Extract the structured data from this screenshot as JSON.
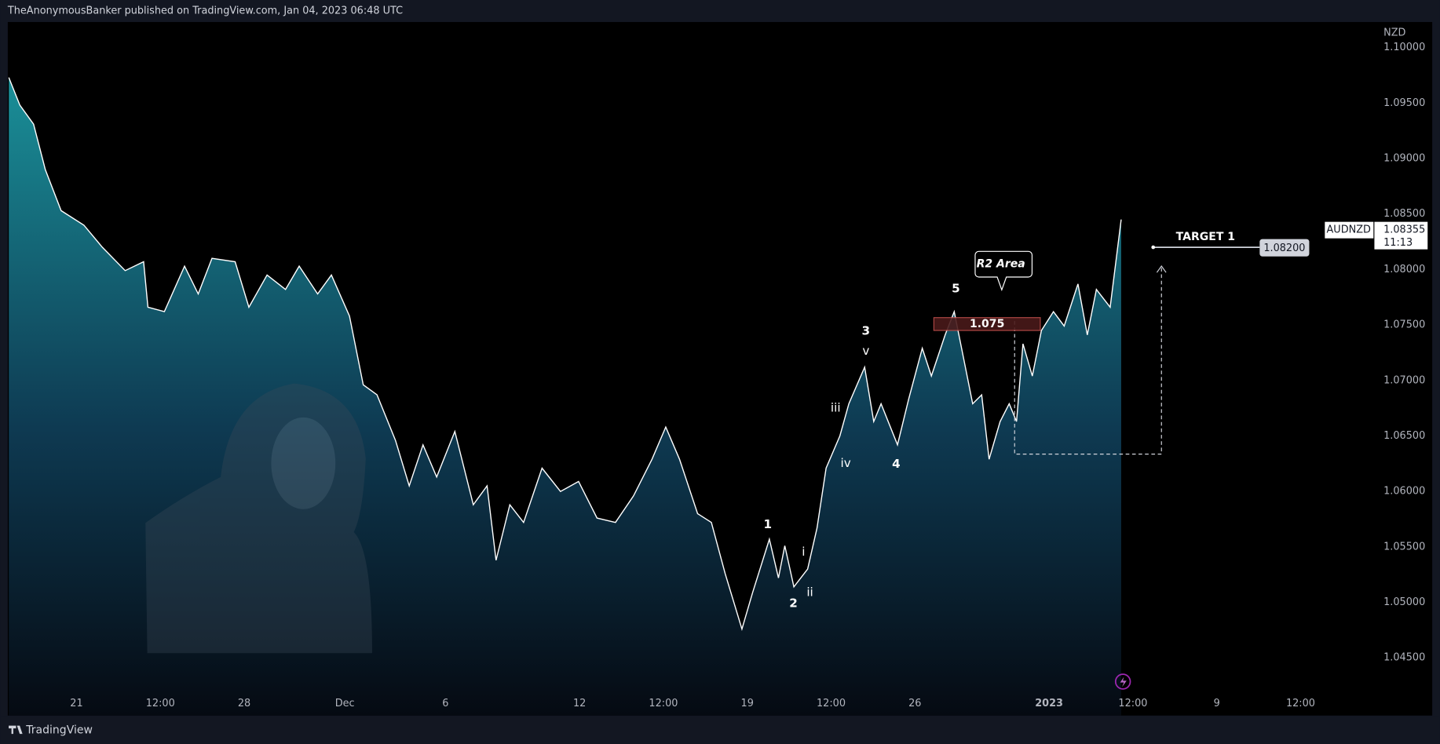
{
  "header": {
    "title": "TheAnonymousBanker published on TradingView.com, Jan 04, 2023 06:48 UTC"
  },
  "footer": {
    "brand": "TradingView"
  },
  "chart_data": {
    "type": "area",
    "symbol": "AUDNZD",
    "currency": "NZD",
    "x": [
      -2.02,
      -1.69,
      -1.28,
      -0.93,
      -0.46,
      0.22,
      0.77,
      1.45,
      2.0,
      2.13,
      2.62,
      3.22,
      3.63,
      4.04,
      4.73,
      5.14,
      5.68,
      6.23,
      6.64,
      7.19,
      7.6,
      8.14,
      8.55,
      8.96,
      9.51,
      9.92,
      10.33,
      10.74,
      11.28,
      11.83,
      12.24,
      12.51,
      12.92,
      13.33,
      13.88,
      14.43,
      14.97,
      15.52,
      16.07,
      16.61,
      17.16,
      17.57,
      17.98,
      18.52,
      18.93,
      19.34,
      19.84,
      20.16,
      20.66,
      20.93,
      21.12,
      21.39,
      21.8,
      22.08,
      22.35,
      22.76,
      23.03,
      23.5,
      23.77,
      23.99,
      24.48,
      24.81,
      25.22,
      25.49,
      25.9,
      26.17,
      26.45,
      26.72,
      26.99,
      27.21,
      27.54,
      27.81,
      28.03,
      28.22,
      28.5,
      28.77,
      29.13,
      29.45,
      29.86,
      30.14,
      30.41,
      30.82,
      31.15
    ],
    "series": [
      {
        "name": "AUDNZD",
        "color": "#ffffff",
        "values": [
          1.0973,
          1.0948,
          1.0931,
          1.089,
          1.0853,
          1.084,
          1.082,
          1.0799,
          1.0807,
          1.0766,
          1.0762,
          1.0803,
          1.0778,
          1.081,
          1.0807,
          1.0766,
          1.0795,
          1.0782,
          1.0803,
          1.0778,
          1.0795,
          1.0758,
          1.0696,
          1.0687,
          1.0646,
          1.0605,
          1.0642,
          1.0613,
          1.0654,
          1.0588,
          1.0605,
          1.0538,
          1.0588,
          1.0572,
          1.0621,
          1.06,
          1.0609,
          1.0576,
          1.0572,
          1.0596,
          1.0629,
          1.0658,
          1.0629,
          1.058,
          1.0572,
          1.0526,
          1.0476,
          1.0509,
          1.0557,
          1.0522,
          1.0551,
          1.0514,
          1.053,
          1.0567,
          1.0621,
          1.065,
          1.0679,
          1.0712,
          1.0663,
          1.0679,
          1.0642,
          1.0683,
          1.0729,
          1.0704,
          1.0741,
          1.0762,
          1.072,
          1.0679,
          1.0687,
          1.0629,
          1.0663,
          1.0679,
          1.0663,
          1.0733,
          1.0704,
          1.0745,
          1.0762,
          1.0749,
          1.0787,
          1.0741,
          1.0782,
          1.0766,
          1.0845
        ]
      }
    ],
    "xlim": [
      -2.05,
      38.7
    ],
    "ylim": [
      1.0398,
      1.1023
    ],
    "xticks": [
      {
        "value": 0,
        "label": "21"
      },
      {
        "value": 2.5,
        "label": "12:00"
      },
      {
        "value": 5,
        "label": "28"
      },
      {
        "value": 8,
        "label": "Dec"
      },
      {
        "value": 11,
        "label": "6"
      },
      {
        "value": 15,
        "label": "12"
      },
      {
        "value": 17.5,
        "label": "12:00"
      },
      {
        "value": 20,
        "label": "19"
      },
      {
        "value": 22.5,
        "label": "12:00"
      },
      {
        "value": 25,
        "label": "26"
      },
      {
        "value": 29,
        "label": "2023"
      },
      {
        "value": 31.5,
        "label": "12:00"
      },
      {
        "value": 34,
        "label": "9"
      },
      {
        "value": 36.5,
        "label": "12:00"
      }
    ],
    "yticks": [
      {
        "value": 1.045,
        "label": "1.04500"
      },
      {
        "value": 1.05,
        "label": "1.05000"
      },
      {
        "value": 1.055,
        "label": "1.05500"
      },
      {
        "value": 1.06,
        "label": "1.06000"
      },
      {
        "value": 1.065,
        "label": "1.06500"
      },
      {
        "value": 1.07,
        "label": "1.07000"
      },
      {
        "value": 1.075,
        "label": "1.07500"
      },
      {
        "value": 1.08,
        "label": "1.08000"
      },
      {
        "value": 1.085,
        "label": "1.08500"
      },
      {
        "value": 1.09,
        "label": "1.09000"
      },
      {
        "value": 1.095,
        "label": "1.09500"
      },
      {
        "value": 1.1,
        "label": "1.10000"
      }
    ],
    "grid": false,
    "last_price": {
      "value": 1.08355,
      "label": "1.08355"
    },
    "countdown": "11:13",
    "target": {
      "title": "TARGET 1",
      "value": 1.082,
      "label": "1.08200"
    },
    "r2": {
      "title": "R2 Area",
      "value": 1.075
    },
    "wave_labels": [
      "1",
      "2",
      "3",
      "4",
      "5",
      "i",
      "ii",
      "iii",
      "iv",
      "v"
    ]
  }
}
